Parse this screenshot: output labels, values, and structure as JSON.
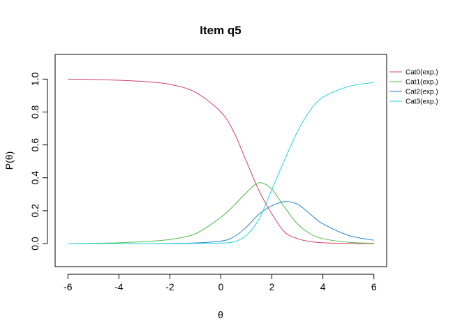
{
  "chart_data": {
    "type": "line",
    "title": "Item q5",
    "xlabel": "θ",
    "ylabel": "P(θ)",
    "xlim": [
      -6.5,
      6.5
    ],
    "ylim": [
      -0.14,
      1.15
    ],
    "x_ticks": [
      -6,
      -4,
      -2,
      0,
      2,
      4,
      6
    ],
    "x_tick_labels": [
      "-6",
      "-4",
      "-2",
      "0",
      "2",
      "4",
      "6"
    ],
    "y_ticks": [
      0.0,
      0.2,
      0.4,
      0.6,
      0.8,
      1.0
    ],
    "y_tick_labels": [
      "0.0",
      "0.2",
      "0.4",
      "0.6",
      "0.8",
      "1.0"
    ],
    "grid": false,
    "legend_position": "right",
    "x": [
      -6,
      -5,
      -4,
      -3,
      -2,
      -1,
      0,
      0.5,
      1,
      1.5,
      2,
      2.5,
      3,
      3.5,
      4,
      5,
      6
    ],
    "series": [
      {
        "name": "Cat0(exp.)",
        "color": "#D33F6A",
        "values": [
          1.0,
          0.998,
          0.993,
          0.985,
          0.968,
          0.92,
          0.8,
          0.68,
          0.5,
          0.32,
          0.18,
          0.07,
          0.03,
          0.012,
          0.005,
          0.001,
          0.0
        ]
      },
      {
        "name": "Cat1(exp.)",
        "color": "#4DBB48",
        "values": [
          0.0,
          0.002,
          0.005,
          0.012,
          0.025,
          0.06,
          0.16,
          0.23,
          0.31,
          0.37,
          0.33,
          0.22,
          0.12,
          0.06,
          0.03,
          0.008,
          0.002
        ]
      },
      {
        "name": "Cat2(exp.)",
        "color": "#1F82C9",
        "values": [
          0.0,
          0.0,
          0.0,
          0.0,
          0.001,
          0.004,
          0.015,
          0.04,
          0.1,
          0.18,
          0.23,
          0.255,
          0.24,
          0.18,
          0.12,
          0.05,
          0.02
        ]
      },
      {
        "name": "Cat3(exp.)",
        "color": "#22D3E0",
        "values": [
          0.0,
          0.0,
          0.0,
          0.0,
          0.0,
          0.001,
          0.003,
          0.01,
          0.05,
          0.15,
          0.33,
          0.51,
          0.68,
          0.81,
          0.89,
          0.955,
          0.98
        ]
      }
    ]
  }
}
